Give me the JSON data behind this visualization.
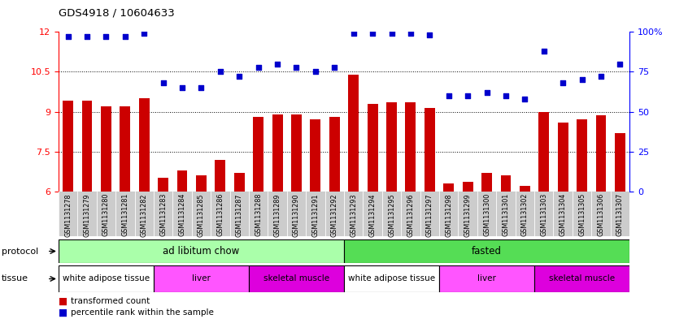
{
  "title": "GDS4918 / 10604633",
  "samples": [
    "GSM1131278",
    "GSM1131279",
    "GSM1131280",
    "GSM1131281",
    "GSM1131282",
    "GSM1131283",
    "GSM1131284",
    "GSM1131285",
    "GSM1131286",
    "GSM1131287",
    "GSM1131288",
    "GSM1131289",
    "GSM1131290",
    "GSM1131291",
    "GSM1131292",
    "GSM1131293",
    "GSM1131294",
    "GSM1131295",
    "GSM1131296",
    "GSM1131297",
    "GSM1131298",
    "GSM1131299",
    "GSM1131300",
    "GSM1131301",
    "GSM1131302",
    "GSM1131303",
    "GSM1131304",
    "GSM1131305",
    "GSM1131306",
    "GSM1131307"
  ],
  "bar_values": [
    9.4,
    9.4,
    9.2,
    9.2,
    9.5,
    6.5,
    6.8,
    6.6,
    7.2,
    6.7,
    8.8,
    8.9,
    8.9,
    8.7,
    8.8,
    10.4,
    9.3,
    9.35,
    9.35,
    9.15,
    6.3,
    6.35,
    6.7,
    6.6,
    6.2,
    9.0,
    8.6,
    8.7,
    8.85,
    8.2
  ],
  "blue_values": [
    97,
    97,
    97,
    97,
    99,
    68,
    65,
    65,
    75,
    72,
    78,
    80,
    78,
    75,
    78,
    99,
    99,
    99,
    99,
    98,
    60,
    60,
    62,
    60,
    58,
    88,
    68,
    70,
    72,
    80
  ],
  "bar_color": "#cc0000",
  "blue_color": "#0000cc",
  "ylim_left": [
    6,
    12
  ],
  "ylim_right": [
    0,
    100
  ],
  "yticks_left": [
    6,
    7.5,
    9,
    10.5,
    12
  ],
  "yticks_right": [
    0,
    25,
    50,
    75,
    100
  ],
  "grid_values": [
    7.5,
    9.0,
    10.5
  ],
  "protocol_labels": [
    "ad libitum chow",
    "fasted"
  ],
  "protocol_ranges": [
    [
      0,
      15
    ],
    [
      15,
      30
    ]
  ],
  "tissue_segments": [
    {
      "label": "white adipose tissue",
      "start": 0,
      "end": 5
    },
    {
      "label": "liver",
      "start": 5,
      "end": 10
    },
    {
      "label": "skeletal muscle",
      "start": 10,
      "end": 15
    },
    {
      "label": "white adipose tissue",
      "start": 15,
      "end": 20
    },
    {
      "label": "liver",
      "start": 20,
      "end": 25
    },
    {
      "label": "skeletal muscle",
      "start": 25,
      "end": 30
    }
  ],
  "tissue_colors": {
    "white adipose tissue": "#ffffff",
    "liver": "#ff55ff",
    "skeletal muscle": "#dd00dd"
  },
  "protocol_color_light": "#aaffaa",
  "protocol_color_dark": "#55dd55",
  "sample_bg_color": "#cccccc",
  "tick_label_fontsize": 5.8
}
